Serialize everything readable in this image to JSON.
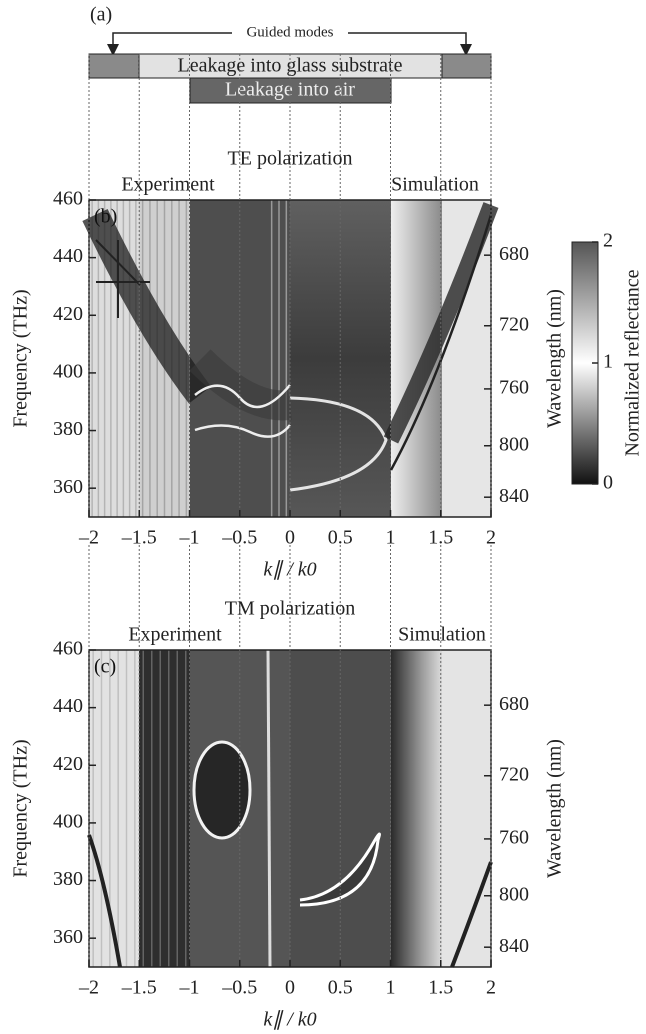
{
  "panel_a": {
    "label": "(a)",
    "guided": "Guided modes",
    "glass": "Leakage into glass substrate",
    "air": "Leakage into air"
  },
  "chart_data": [
    {
      "type": "heatmap",
      "label": "(b)",
      "title": "TE polarization",
      "left_label": "Experiment",
      "right_label": "Simulation",
      "xlabel": "k∥ / k0",
      "ylabel": "Frequency (THz)",
      "y2label": "Wavelength (nm)",
      "xlim": [
        -2,
        2
      ],
      "xticks": [
        {
          "value": -2,
          "label": "–2"
        },
        {
          "value": -1.5,
          "label": "–1.5"
        },
        {
          "value": -1,
          "label": "–1"
        },
        {
          "value": -0.5,
          "label": "–0.5"
        },
        0,
        0.5,
        1,
        1.5,
        2
      ],
      "xgrid": true,
      "ylim": [
        350,
        460
      ],
      "yticks": [
        360,
        380,
        400,
        420,
        440,
        460
      ],
      "y2lim": [
        856.5,
        651.7
      ],
      "y2scale": "reciprocal",
      "y2ticks": [
        680,
        720,
        760,
        800,
        840
      ],
      "colorbar": {
        "label": "Normalized reflectance",
        "lim": [
          0,
          2
        ],
        "ticks": [
          0,
          1,
          2
        ],
        "colors": [
          "#111111",
          "#ffffff",
          "#555555"
        ]
      }
    },
    {
      "type": "heatmap",
      "label": "(c)",
      "title": "TM polarization",
      "left_label": "Experiment",
      "right_label": "Simulation",
      "xlabel": "k∥ / k0",
      "ylabel": "Frequency (THz)",
      "y2label": "Wavelength (nm)",
      "xlim": [
        -2,
        2
      ],
      "xticks": [
        {
          "value": -2,
          "label": "–2"
        },
        {
          "value": -1.5,
          "label": "–1.5"
        },
        {
          "value": -1,
          "label": "–1"
        },
        {
          "value": -0.5,
          "label": "–0.5"
        },
        0,
        0.5,
        1,
        1.5,
        2
      ],
      "xgrid": true,
      "ylim": [
        350,
        460
      ],
      "yticks": [
        360,
        380,
        400,
        420,
        440,
        460
      ],
      "y2lim": [
        856.5,
        651.7
      ],
      "y2scale": "reciprocal",
      "y2ticks": [
        680,
        720,
        760,
        800,
        840
      ]
    }
  ]
}
